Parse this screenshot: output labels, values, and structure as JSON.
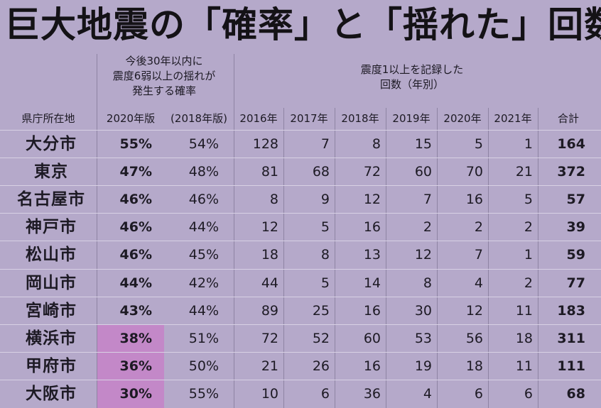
{
  "title": "巨大地震の「確率」と「揺れた」回数",
  "header": {
    "prob_group": [
      "今後30年以内に",
      "震度6弱以上の揺れが",
      "発生する確率"
    ],
    "count_group": [
      "震度1以上を記録した",
      "回数（年別）"
    ],
    "columns": [
      "県庁所在地",
      "2020年版",
      "(2018年版)",
      "2016年",
      "2017年",
      "2018年",
      "2019年",
      "2020年",
      "2021年",
      "合計"
    ]
  },
  "colors": {
    "background": "#b5a9ca",
    "highlight": "#c388c8"
  },
  "chart_data": {
    "type": "table",
    "title": "巨大地震の「確率」と「揺れた」回数",
    "columns": [
      "県庁所在地",
      "2020年版",
      "(2018年版)",
      "2016年",
      "2017年",
      "2018年",
      "2019年",
      "2020年",
      "2021年",
      "合計"
    ],
    "rows": [
      {
        "city": "大分市",
        "p2020": "55%",
        "p2018": "54%",
        "counts": [
          "128",
          "7",
          "8",
          "15",
          "5",
          "1"
        ],
        "total": "164",
        "highlight": false
      },
      {
        "city": "東京",
        "p2020": "47%",
        "p2018": "48%",
        "counts": [
          "81",
          "68",
          "72",
          "60",
          "70",
          "21"
        ],
        "total": "372",
        "highlight": false
      },
      {
        "city": "名古屋市",
        "p2020": "46%",
        "p2018": "46%",
        "counts": [
          "8",
          "9",
          "12",
          "7",
          "16",
          "5"
        ],
        "total": "57",
        "highlight": false
      },
      {
        "city": "神戸市",
        "p2020": "46%",
        "p2018": "44%",
        "counts": [
          "12",
          "5",
          "16",
          "2",
          "2",
          "2"
        ],
        "total": "39",
        "highlight": false
      },
      {
        "city": "松山市",
        "p2020": "46%",
        "p2018": "45%",
        "counts": [
          "18",
          "8",
          "13",
          "12",
          "7",
          "1"
        ],
        "total": "59",
        "highlight": false
      },
      {
        "city": "岡山市",
        "p2020": "44%",
        "p2018": "42%",
        "counts": [
          "44",
          "5",
          "14",
          "8",
          "4",
          "2"
        ],
        "total": "77",
        "highlight": false
      },
      {
        "city": "宮崎市",
        "p2020": "43%",
        "p2018": "44%",
        "counts": [
          "89",
          "25",
          "16",
          "30",
          "12",
          "11"
        ],
        "total": "183",
        "highlight": false
      },
      {
        "city": "横浜市",
        "p2020": "38%",
        "p2018": "51%",
        "counts": [
          "72",
          "52",
          "60",
          "53",
          "56",
          "18"
        ],
        "total": "311",
        "highlight": true
      },
      {
        "city": "甲府市",
        "p2020": "36%",
        "p2018": "50%",
        "counts": [
          "21",
          "26",
          "16",
          "19",
          "18",
          "11"
        ],
        "total": "111",
        "highlight": true
      },
      {
        "city": "大阪市",
        "p2020": "30%",
        "p2018": "55%",
        "counts": [
          "10",
          "6",
          "36",
          "4",
          "6",
          "6"
        ],
        "total": "68",
        "highlight": true
      }
    ]
  }
}
